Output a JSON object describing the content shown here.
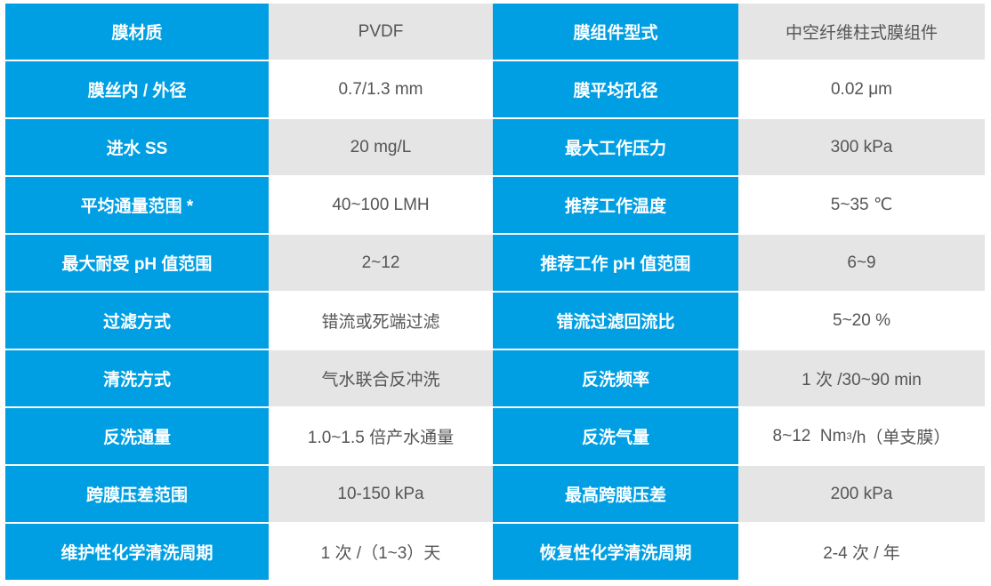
{
  "colors": {
    "header_blue": "#009fe3",
    "stripe_gray": "#e5e5e5",
    "text": "#555555"
  },
  "rows": [
    {
      "k1": "膜材质",
      "v1": "PVDF",
      "k2": "膜组件型式",
      "v2": "中空纤维柱式膜组件"
    },
    {
      "k1": "膜丝内 / 外径",
      "v1": "0.7/1.3 mm",
      "k2": "膜平均孔径",
      "v2": "0.02 μm"
    },
    {
      "k1": "进水 SS",
      "v1": "20 mg/L",
      "k2": "最大工作压力",
      "v2": "300 kPa"
    },
    {
      "k1": "平均通量范围 *",
      "v1": "40~100 LMH",
      "k2": "推荐工作温度",
      "v2": "5~35 ℃"
    },
    {
      "k1": "最大耐受 pH 值范围",
      "v1": "2~12",
      "k2": "推荐工作 pH 值范围",
      "v2": "6~9"
    },
    {
      "k1": "过滤方式",
      "v1": "错流或死端过滤",
      "k2": "错流过滤回流比",
      "v2": "5~20 %"
    },
    {
      "k1": "清洗方式",
      "v1": "气水联合反冲洗",
      "k2": "反洗频率",
      "v2": "1 次 /30~90 min"
    },
    {
      "k1": "反洗通量",
      "v1": "1.0~1.5 倍产水通量",
      "k2": "反洗气量",
      "v2a": "8~12  Nm",
      "v2sup": "3",
      "v2b": "/h（单支膜）"
    },
    {
      "k1": "跨膜压差范围",
      "v1": "10-150  kPa",
      "k2": "最高跨膜压差",
      "v2": "200 kPa"
    },
    {
      "k1": "维护性化学清洗周期",
      "v1": "1 次 /（1~3）天",
      "k2": "恢复性化学清洗周期",
      "v2": "2-4 次 / 年"
    }
  ]
}
